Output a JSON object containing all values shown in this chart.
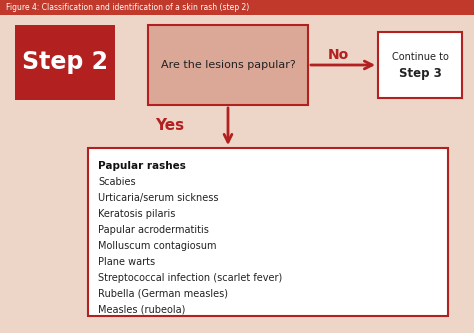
{
  "title": "Figure 4: Classification and identification of a skin rash (step 2)",
  "title_bg": "#c0392b",
  "title_color": "#ffffff",
  "bg_color": "#edd5c8",
  "step_box": {
    "text": "Step 2",
    "bg": "#b22020",
    "fg": "#ffffff"
  },
  "question_box": {
    "text": "Are the lesions papular?",
    "bg": "#dba898",
    "border": "#b22020"
  },
  "no_label": {
    "text": "No",
    "color": "#b22020"
  },
  "continue_box": {
    "line1": "Continue to",
    "line2": "Step 3",
    "bg": "#ffffff",
    "border": "#b22020"
  },
  "yes_label": {
    "text": "Yes",
    "color": "#b22020"
  },
  "list_box": {
    "title": "Papular rashes",
    "items": [
      "Scabies",
      "Urticaria/serum sickness",
      "Keratosis pilaris",
      "Papular acrodermatitis",
      "Molluscum contagiosum",
      "Plane warts",
      "Streptococcal infection (scarlet fever)",
      "Rubella (German measles)",
      "Measles (rubeola)"
    ],
    "bg": "#ffffff",
    "border": "#b22020"
  },
  "arrow_color": "#b22020"
}
